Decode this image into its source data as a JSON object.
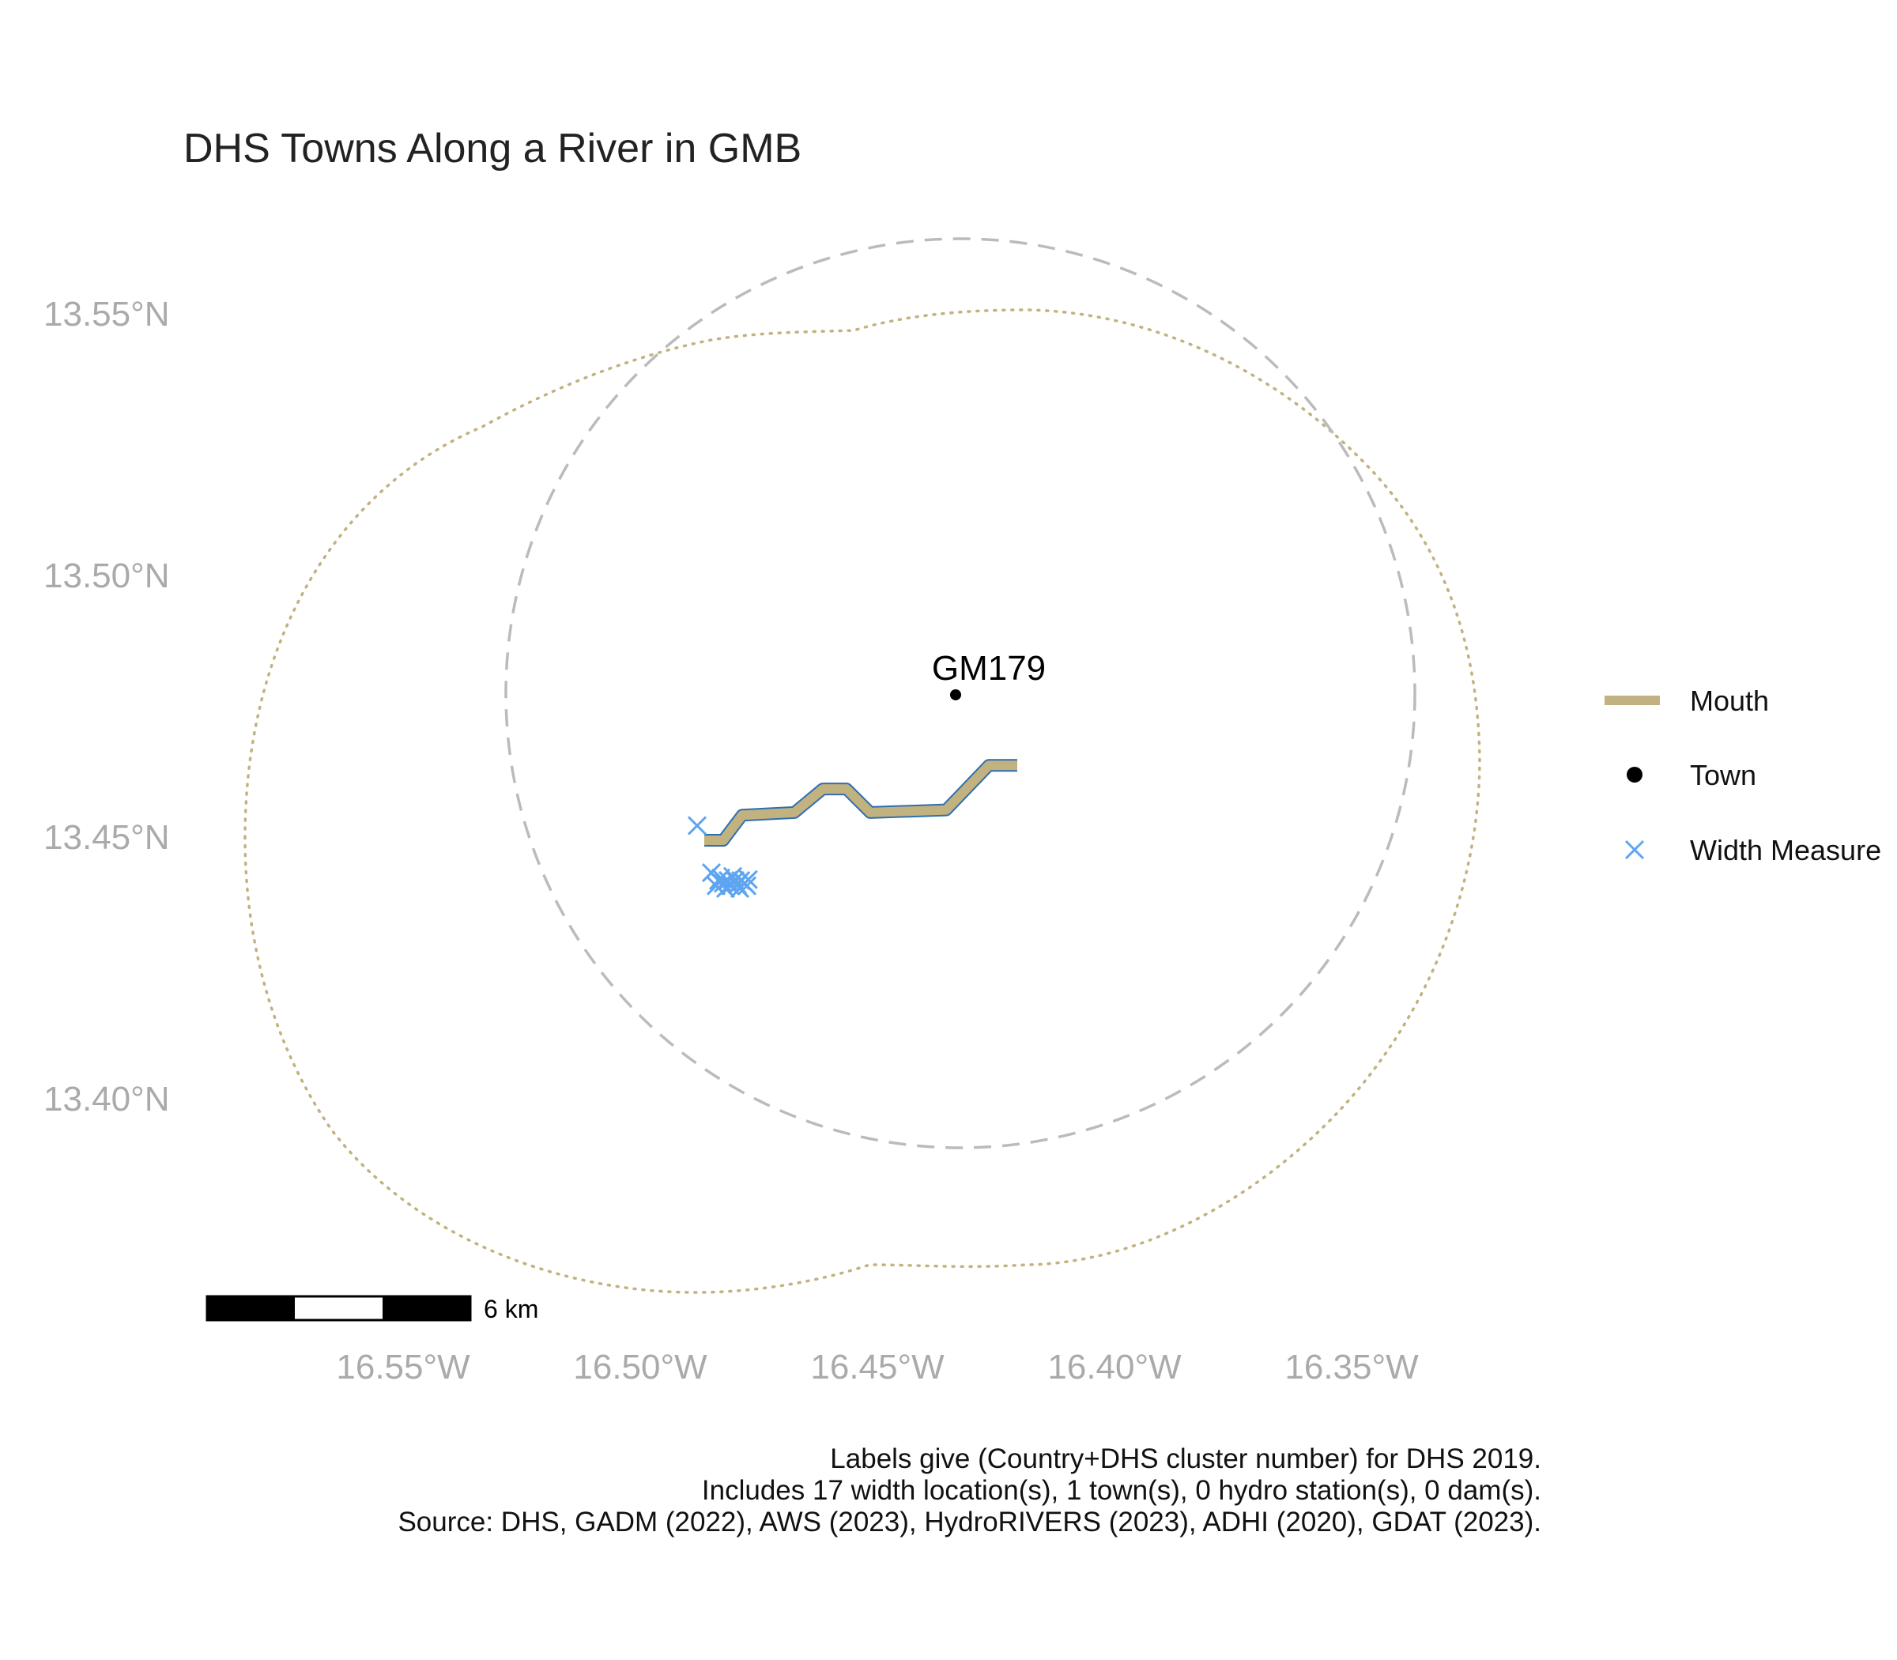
{
  "title": "DHS Towns Along a River in GMB",
  "axes": {
    "y_ticks": [
      "13.55°N",
      "13.50°N",
      "13.45°N",
      "13.40°N"
    ],
    "x_ticks": [
      "16.55°W",
      "16.50°W",
      "16.45°W",
      "16.40°W",
      "16.35°W"
    ]
  },
  "legend": {
    "placement": "right",
    "items": [
      {
        "label": "Mouth",
        "symbol": "line",
        "color": "#c2b280"
      },
      {
        "label": "Town",
        "symbol": "point",
        "color": "#000000"
      },
      {
        "label": "Width Measure",
        "symbol": "x",
        "color": "#5da5f0"
      }
    ]
  },
  "town": {
    "label": "GM179",
    "lon": -16.4335,
    "lat": 13.4775
  },
  "scale_bar": {
    "label": "6 km"
  },
  "caption": {
    "line1": "Labels give (Country+DHS cluster number) for DHS 2019.",
    "line2": "Includes 17 width location(s), 1 town(s), 0 hydro station(s), 0 dam(s).",
    "line3": "Source: DHS, GADM (2022), AWS (2023), HydroRIVERS (2023), ADHI (2020), GDAT (2023)."
  },
  "colors": {
    "river_fill": "#c2b280",
    "river_outline": "#2e6fb0",
    "width_measure": "#5da5f0",
    "buffer_dashed": "#bbbbbb",
    "buffer_dotted": "#c2b280",
    "axis_text": "#aaaaaa"
  },
  "chart_data": {
    "type": "map",
    "xlim": [
      -16.6,
      -16.3
    ],
    "ylim": [
      13.36,
      13.57
    ],
    "river_mouth_lonlat": [
      [
        -16.4865,
        13.4497
      ],
      [
        -16.4825,
        13.4497
      ],
      [
        -16.4785,
        13.4545
      ],
      [
        -16.4675,
        13.455
      ],
      [
        -16.4615,
        13.4595
      ],
      [
        -16.4565,
        13.4595
      ],
      [
        -16.4515,
        13.455
      ],
      [
        -16.4355,
        13.4555
      ],
      [
        -16.4265,
        13.464
      ],
      [
        -16.4205,
        13.464
      ]
    ],
    "width_measures_lonlat": [
      [
        -16.488,
        13.4525
      ],
      [
        -16.485,
        13.4435
      ],
      [
        -16.4835,
        13.442
      ],
      [
        -16.4825,
        13.4415
      ],
      [
        -16.4815,
        13.442
      ],
      [
        -16.481,
        13.441
      ],
      [
        -16.48,
        13.442
      ],
      [
        -16.4795,
        13.4412
      ],
      [
        -16.4788,
        13.442
      ],
      [
        -16.478,
        13.4415
      ],
      [
        -16.4772,
        13.4422
      ],
      [
        -16.484,
        13.441
      ],
      [
        -16.483,
        13.4425
      ],
      [
        -16.482,
        13.4405
      ],
      [
        -16.4805,
        13.4428
      ],
      [
        -16.479,
        13.4405
      ],
      [
        -16.4775,
        13.441
      ]
    ]
  }
}
